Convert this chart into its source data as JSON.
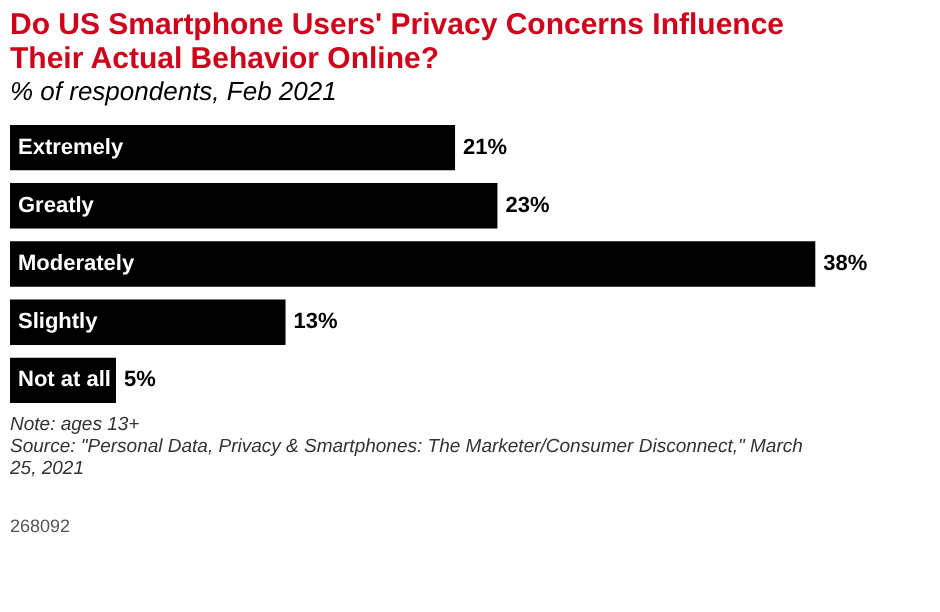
{
  "chart_data": {
    "type": "bar",
    "orientation": "horizontal",
    "relative": false,
    "title": "Do US Smartphone Users' Privacy Concerns Influence Their Actual Behavior Online?",
    "subtitle": "% of respondents, Feb 2021",
    "categories": [
      "Extremely",
      "Greatly",
      "Moderately",
      "Slightly",
      "Not at all"
    ],
    "values": [
      21,
      23,
      38,
      13,
      5
    ],
    "value_labels": [
      "21%",
      "23%",
      "38%",
      "13%",
      "5%"
    ],
    "color": "#000000",
    "annotations": [
      "Note: ages 13+",
      "Source: \"Personal Data, Privacy & Smartphones: The Marketer/Consumer Disconnect,\" March 25, 2021",
      "268092"
    ]
  }
}
